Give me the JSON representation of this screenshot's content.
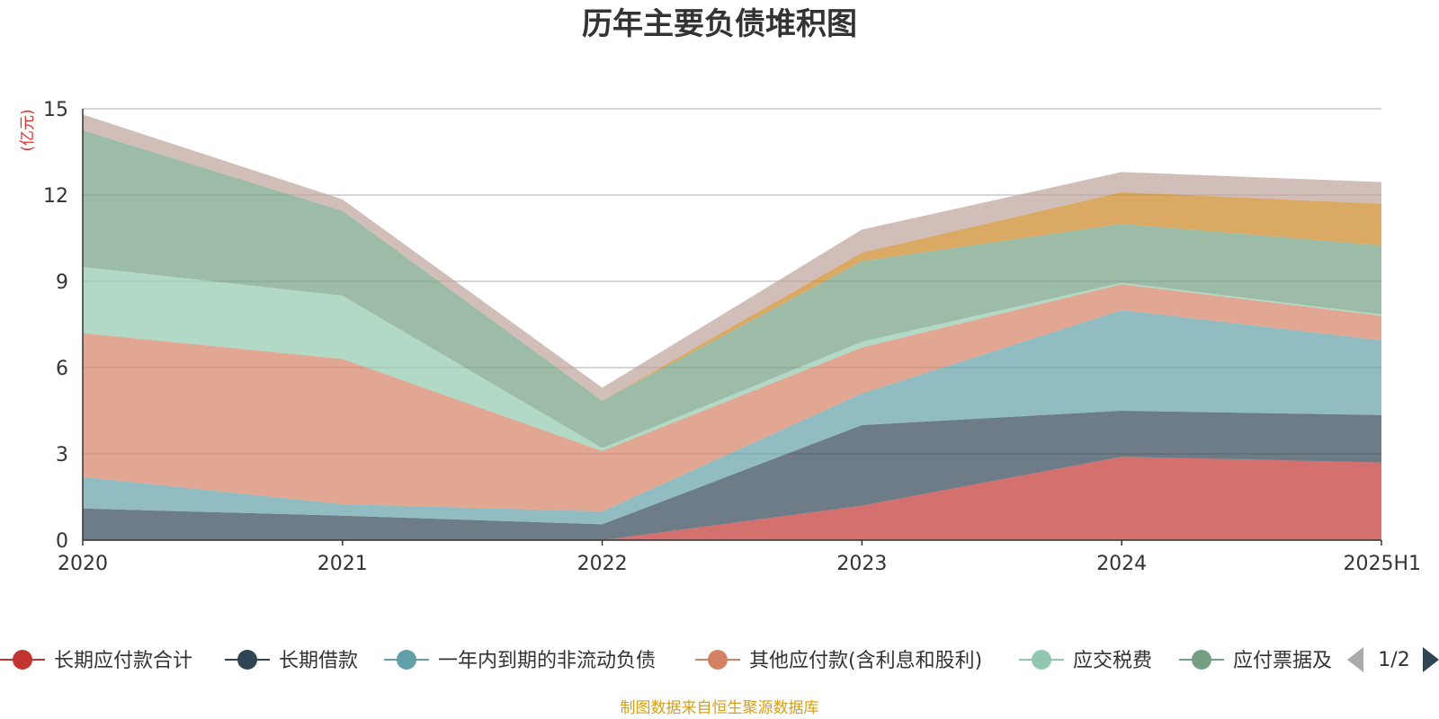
{
  "chart_data": {
    "type": "area",
    "stacked": true,
    "title": "历年主要负债堆积图",
    "unit_label": "(亿元)",
    "categories": [
      "2020",
      "2021",
      "2022",
      "2023",
      "2024",
      "2025H1"
    ],
    "y_ticks": [
      "0",
      "3",
      "6",
      "9",
      "12",
      "15"
    ],
    "ylim": [
      0,
      15
    ],
    "grid": true,
    "series": [
      {
        "name": "长期应付款合计",
        "color": "#c23531",
        "values": [
          0,
          0,
          0,
          1.2,
          2.9,
          2.7
        ]
      },
      {
        "name": "长期借款",
        "color": "#2f4554",
        "values": [
          1.1,
          0.85,
          0.55,
          2.8,
          1.6,
          1.65
        ]
      },
      {
        "name": "一年内到期的非流动负债",
        "color": "#61a0a8",
        "values": [
          1.1,
          0.4,
          0.45,
          1.1,
          3.5,
          2.6
        ]
      },
      {
        "name": "其他应付款(含利息和股利)",
        "color": "#d48265",
        "values": [
          5.0,
          5.05,
          2.1,
          1.6,
          0.9,
          0.85
        ]
      },
      {
        "name": "应交税费",
        "color": "#91c7ae",
        "values": [
          2.3,
          2.2,
          0.1,
          0.2,
          0.05,
          0.05
        ]
      },
      {
        "name": "应付票据及应付账款",
        "color": "#749f83",
        "values": [
          4.75,
          2.95,
          1.65,
          2.8,
          2.05,
          2.4
        ]
      },
      {
        "name": "",
        "color": "#ca8622",
        "values": [
          0,
          0,
          0,
          0.3,
          1.1,
          1.45
        ]
      },
      {
        "name": "",
        "color": "#bda29a",
        "values": [
          0.55,
          0.4,
          0.45,
          0.8,
          0.7,
          0.75
        ]
      }
    ],
    "legend": {
      "position": "bottom",
      "visible_items": [
        "长期应付款合计",
        "长期借款",
        "一年内到期的非流动负债",
        "其他应付款(含利息和股利)",
        "应交税费",
        "应付票据及"
      ],
      "page": "1/2"
    },
    "source": "制图数据来自恒生聚源数据库"
  },
  "icons": {
    "prev": "triangle-left-icon",
    "next": "triangle-right-icon"
  }
}
